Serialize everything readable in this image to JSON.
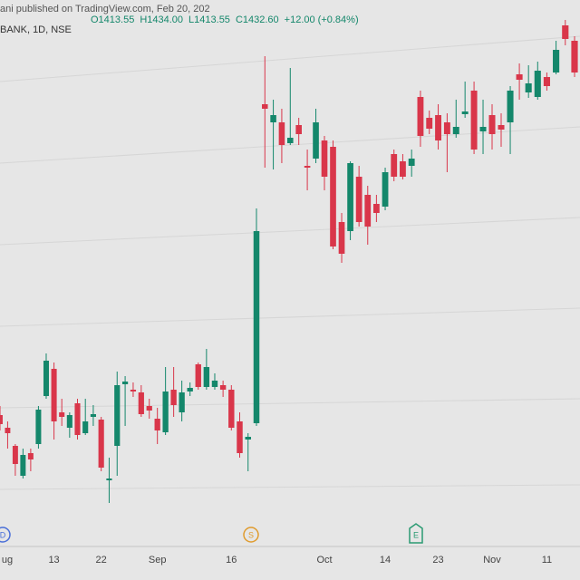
{
  "header": {
    "source": "ani published on TradingView.com, Feb 20, 202",
    "symbol": "BANK, 1D, NSE",
    "ohlc": [
      "O1413.55",
      "H1434.00",
      "L1413.55",
      "C1432.60",
      "+12.00 (+0.84%)"
    ]
  },
  "events": {
    "dividend": "D",
    "split": "S",
    "earnings": "E"
  },
  "chart_data": {
    "type": "candlestick",
    "categories": [
      "ug",
      null,
      null,
      null,
      null,
      null,
      null,
      "13",
      null,
      null,
      null,
      null,
      null,
      "22",
      null,
      null,
      null,
      null,
      null,
      null,
      "Sep",
      null,
      null,
      null,
      null,
      null,
      null,
      null,
      null,
      "16",
      null,
      null,
      null,
      null,
      null,
      null,
      null,
      null,
      null,
      null,
      "Oct",
      null,
      null,
      null,
      null,
      null,
      null,
      "14",
      null,
      null,
      null,
      null,
      null,
      "23",
      null,
      null,
      null,
      null,
      null,
      "Nov",
      null,
      null,
      null,
      null,
      null,
      "11",
      null,
      null,
      null
    ],
    "open": [
      1231,
      1224,
      1214,
      1197.5,
      1210,
      1215,
      1241.5,
      1256.5,
      1232.5,
      1224,
      1237.5,
      1221,
      1230,
      1228.5,
      1195,
      1214,
      1248,
      1245,
      1243.5,
      1236,
      1229,
      1221.5,
      1245,
      1232.5,
      1244,
      1259,
      1246.5,
      1246.5,
      1247.5,
      1245,
      1227.5,
      1217.5,
      1226.5,
      1402.5,
      1392.5,
      1392.5,
      1381,
      1391,
      1368.5,
      1372.5,
      1382.5,
      1379,
      1337.5,
      1332.5,
      1362.5,
      1352.5,
      1347.5,
      1346,
      1375,
      1371,
      1368.5,
      1406.5,
      1395,
      1396.5,
      1392.5,
      1386,
      1397,
      1410,
      1387.5,
      1396.5,
      1391,
      1392.5,
      1419,
      1409,
      1406.5,
      1417.5,
      1420,
      1446,
      1437.5
    ],
    "high": [
      1236,
      1227.5,
      1215,
      1212.5,
      1212.5,
      1236,
      1265,
      1260,
      1240,
      1232.5,
      1240,
      1240,
      1236.5,
      1230,
      1207.5,
      1255,
      1252.5,
      1249,
      1247.5,
      1240,
      1235,
      1257.5,
      1257.5,
      1250,
      1249,
      1260,
      1267.5,
      1254,
      1250,
      1247.5,
      1232.5,
      1221,
      1345,
      1429,
      1405,
      1400,
      1422.5,
      1395,
      1377.5,
      1400,
      1385,
      1382.5,
      1342.5,
      1371,
      1368.5,
      1357.5,
      1352.5,
      1367.5,
      1377.5,
      1375,
      1377.5,
      1410,
      1399,
      1402.5,
      1397.5,
      1405,
      1415,
      1415,
      1405,
      1402.5,
      1397.5,
      1412.5,
      1425,
      1424,
      1426,
      1420,
      1437.5,
      1449,
      1440
    ],
    "low": [
      1222.5,
      1212.5,
      1197.5,
      1196,
      1200,
      1212.5,
      1240,
      1217.5,
      1225,
      1218.5,
      1217.5,
      1220,
      1225,
      1200,
      1182.5,
      1197.5,
      1225,
      1241,
      1230,
      1229,
      1215,
      1220,
      1230,
      1227.5,
      1241.5,
      1245,
      1245,
      1245,
      1241,
      1222.5,
      1207.5,
      1200,
      1225,
      1367.5,
      1366.5,
      1370,
      1380,
      1380,
      1355,
      1370,
      1355,
      1322.5,
      1315,
      1327.5,
      1335,
      1325,
      1337.5,
      1344,
      1360,
      1361,
      1362.5,
      1379,
      1386,
      1377.5,
      1365,
      1384,
      1395,
      1375,
      1375,
      1377.5,
      1379,
      1375,
      1405,
      1406,
      1405,
      1410,
      1419,
      1435,
      1417.5
    ],
    "close": [
      1226,
      1221,
      1204,
      1209,
      1206.5,
      1234,
      1261,
      1227.5,
      1230,
      1231,
      1220,
      1227.5,
      1231.5,
      1202,
      1196,
      1247.5,
      1249.5,
      1244,
      1231.5,
      1233.5,
      1222.5,
      1244,
      1236.5,
      1243.5,
      1246,
      1246.5,
      1257.5,
      1250,
      1245,
      1224,
      1210,
      1219,
      1332.5,
      1400,
      1396.5,
      1380,
      1384,
      1386,
      1367.5,
      1392.5,
      1362.5,
      1324,
      1320,
      1370,
      1337.5,
      1335,
      1342.5,
      1365,
      1362.5,
      1362.5,
      1372.5,
      1385,
      1389,
      1382.5,
      1386,
      1390,
      1398.5,
      1377.5,
      1390,
      1386,
      1388.5,
      1410,
      1416,
      1414,
      1421,
      1412.5,
      1432.5,
      1438.5,
      1420
    ],
    "up_color": "#14876b",
    "down_color": "#d9364a",
    "ylim": [
      1160,
      1460
    ]
  }
}
